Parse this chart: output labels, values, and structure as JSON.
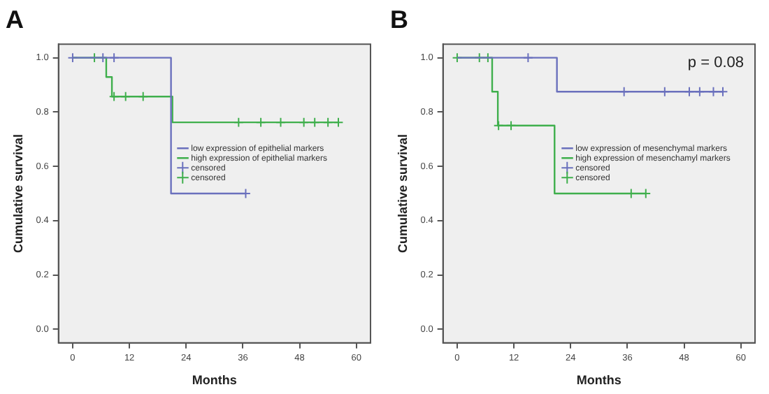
{
  "chart_data": [
    {
      "type": "step",
      "title": "A",
      "xlabel": "Months",
      "ylabel": "Cumulative survival",
      "xlim": [
        -3,
        63
      ],
      "xticks": [
        0,
        12,
        24,
        36,
        48,
        60
      ],
      "ylim": [
        -0.05,
        1.05
      ],
      "yticks": [
        {
          "value": 0,
          "label": "0.0"
        },
        {
          "value": 0.2,
          "label": "0.2"
        },
        {
          "value": 0.4,
          "label": "0.4"
        },
        {
          "value": 0.6,
          "label": "0.6"
        },
        {
          "value": 0.8,
          "label": "0.8"
        },
        {
          "value": 1,
          "label": "1.0"
        }
      ],
      "grid": false,
      "legend": "right",
      "line_style": "solid",
      "series": [
        {
          "type": "step",
          "name": "low expression of epithelial markers",
          "color": "#6a70bd",
          "x": [
            0,
            20.8,
            36.6
          ],
          "values": [
            1,
            0.5,
            0.5
          ],
          "marker": "none"
        },
        {
          "type": "step",
          "name": "high expression of epithelial markers",
          "color": "#3faf4c",
          "x": [
            0,
            7.1,
            8.3,
            21.1,
            56.2
          ],
          "values": [
            1,
            0.929,
            0.857,
            0.762,
            0.762
          ],
          "marker": "none"
        },
        {
          "type": "scatter",
          "name": "censored",
          "color": "#6a70bd",
          "x": [
            0,
            6.4,
            8.75,
            36.6
          ],
          "values": [
            1,
            1,
            1,
            0.5
          ],
          "marker": "cross"
        },
        {
          "type": "scatter",
          "name": "censored",
          "color": "#3faf4c",
          "x": [
            4.6,
            8.75,
            11.2,
            14.9,
            35.1,
            39.8,
            44,
            48.9,
            51.2,
            54,
            56.2
          ],
          "values": [
            1,
            0.857,
            0.857,
            0.857,
            0.762,
            0.762,
            0.762,
            0.762,
            0.762,
            0.762,
            0.762
          ],
          "marker": "cross"
        }
      ]
    },
    {
      "type": "step",
      "title": "B",
      "xlabel": "Months",
      "ylabel": "Cumulative survival",
      "xlim": [
        -3,
        63
      ],
      "xticks": [
        0,
        12,
        24,
        36,
        48,
        60
      ],
      "ylim": [
        -0.05,
        1.05
      ],
      "yticks": [
        {
          "value": 0,
          "label": "0.0"
        },
        {
          "value": 0.2,
          "label": "0.2"
        },
        {
          "value": 0.4,
          "label": "0.4"
        },
        {
          "value": 0.6,
          "label": "0.6"
        },
        {
          "value": 0.8,
          "label": "0.8"
        },
        {
          "value": 1,
          "label": "1.0"
        }
      ],
      "grid": false,
      "legend": "right",
      "line_style": "solid",
      "annotations": [
        "p = 0.08"
      ],
      "series": [
        {
          "type": "step",
          "name": "low expression of mesenchymal markers",
          "color": "#6a70bd",
          "x": [
            0,
            21.1,
            56.2
          ],
          "values": [
            1,
            0.875,
            0.875
          ],
          "marker": "none"
        },
        {
          "type": "step",
          "name": "high expression of mesenchamyl markers",
          "color": "#3faf4c",
          "x": [
            0,
            7.4,
            8.6,
            20.6,
            39.9
          ],
          "values": [
            1,
            0.875,
            0.75,
            0.5,
            0.5
          ],
          "marker": "none"
        },
        {
          "type": "scatter",
          "name": "censored",
          "color": "#6a70bd",
          "x": [
            15,
            35.3,
            43.9,
            49.1,
            51.3,
            54.2,
            56.2
          ],
          "values": [
            1,
            0.875,
            0.875,
            0.875,
            0.875,
            0.875,
            0.875
          ],
          "marker": "cross"
        },
        {
          "type": "scatter",
          "name": "censored",
          "color": "#3faf4c",
          "x": [
            0,
            4.7,
            6.5,
            8.75,
            11.4,
            36.8,
            39.9
          ],
          "values": [
            1,
            1,
            1,
            0.75,
            0.75,
            0.5,
            0.5
          ],
          "marker": "cross"
        }
      ]
    }
  ]
}
